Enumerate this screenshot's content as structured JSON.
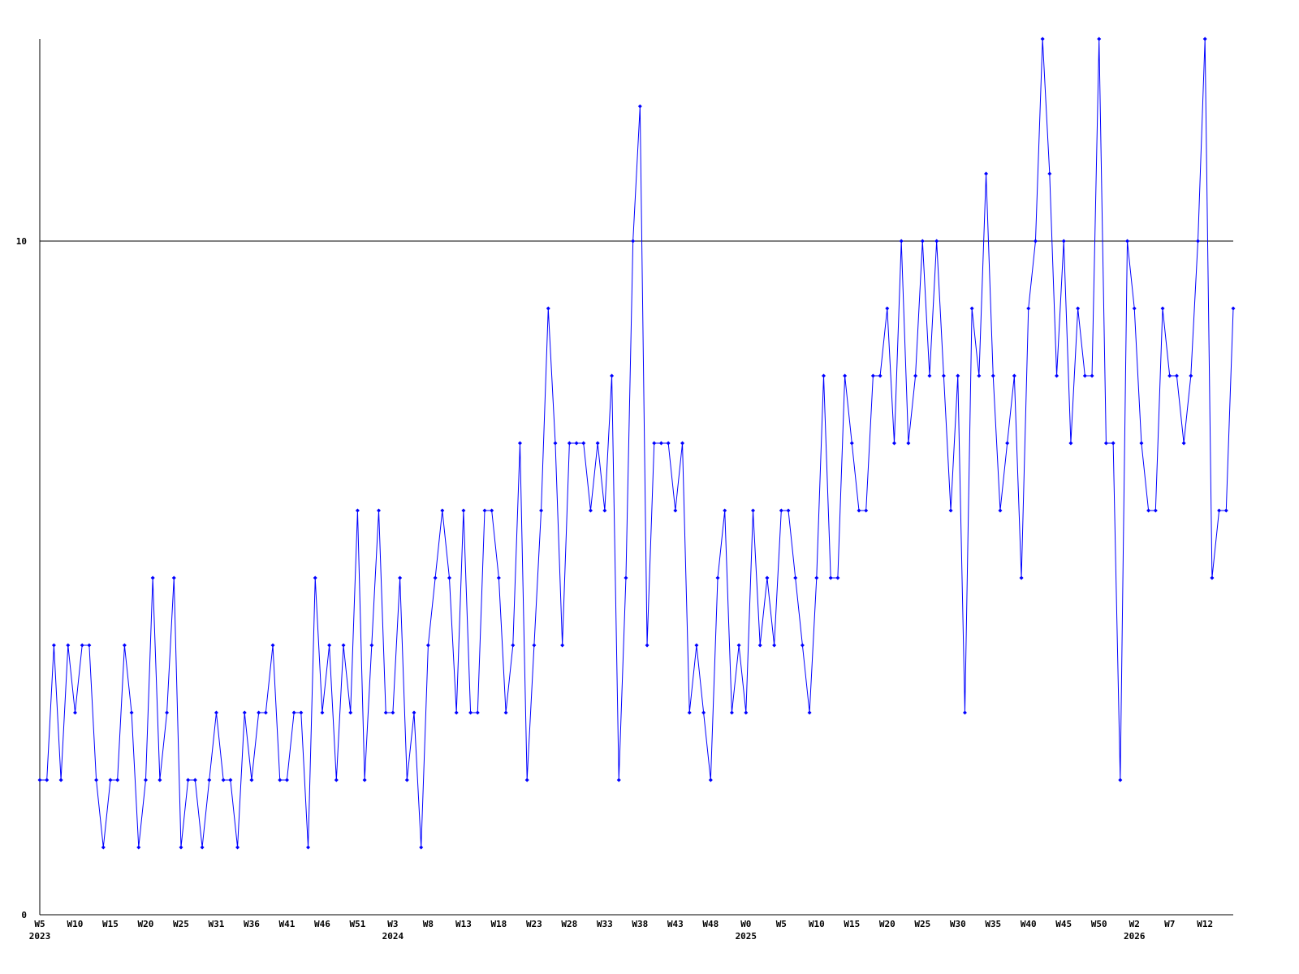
{
  "chart_data": {
    "type": "line",
    "color": "#0000ff",
    "axis_color": "#000000",
    "ylim": [
      0,
      13
    ],
    "yticks": [
      0,
      10
    ],
    "grid": true,
    "categories": [
      "W5",
      null,
      null,
      null,
      null,
      "W10",
      null,
      null,
      null,
      null,
      "W15",
      null,
      null,
      null,
      null,
      "W20",
      null,
      null,
      null,
      null,
      "W25",
      null,
      null,
      null,
      null,
      "W31",
      null,
      null,
      null,
      null,
      "W36",
      null,
      null,
      null,
      null,
      "W41",
      null,
      null,
      null,
      null,
      "W46",
      null,
      null,
      null,
      null,
      "W51",
      null,
      null,
      null,
      null,
      "W3",
      null,
      null,
      null,
      null,
      "W8",
      null,
      null,
      null,
      null,
      "W13",
      null,
      null,
      null,
      null,
      "W18",
      null,
      null,
      null,
      null,
      "W23",
      null,
      null,
      null,
      null,
      "W28",
      null,
      null,
      null,
      null,
      "W33",
      null,
      null,
      null,
      null,
      "W38",
      null,
      null,
      null,
      null,
      "W43",
      null,
      null,
      null,
      null,
      "W48",
      null,
      null,
      null,
      null,
      "W0",
      null,
      null,
      null,
      null,
      "W5",
      null,
      null,
      null,
      null,
      "W10",
      null,
      null,
      null,
      null,
      "W15",
      null,
      null,
      null,
      null,
      "W20",
      null,
      null,
      null,
      null,
      "W25",
      null,
      null,
      null,
      null,
      "W30",
      null,
      null,
      null,
      null,
      "W35",
      null,
      null,
      null,
      null,
      "W40",
      null,
      null,
      null,
      null,
      "W45",
      null,
      null,
      null,
      null,
      "W50",
      null,
      null,
      null,
      null,
      "W2",
      null,
      null,
      null,
      null,
      "W7",
      null,
      null,
      null,
      null,
      "W12",
      null,
      null,
      null,
      null
    ],
    "years": [
      "2023",
      null,
      null,
      null,
      null,
      null,
      null,
      null,
      null,
      null,
      null,
      null,
      null,
      null,
      null,
      null,
      null,
      null,
      null,
      null,
      null,
      null,
      null,
      null,
      null,
      null,
      null,
      null,
      null,
      null,
      null,
      null,
      null,
      null,
      null,
      null,
      null,
      null,
      null,
      null,
      null,
      null,
      null,
      null,
      null,
      null,
      null,
      null,
      null,
      null,
      "2024",
      null,
      null,
      null,
      null,
      null,
      null,
      null,
      null,
      null,
      null,
      null,
      null,
      null,
      null,
      null,
      null,
      null,
      null,
      null,
      null,
      null,
      null,
      null,
      null,
      null,
      null,
      null,
      null,
      null,
      null,
      null,
      null,
      null,
      null,
      null,
      null,
      null,
      null,
      null,
      null,
      null,
      null,
      null,
      null,
      null,
      null,
      null,
      null,
      null,
      "2025",
      null,
      null,
      null,
      null,
      null,
      null,
      null,
      null,
      null,
      null,
      null,
      null,
      null,
      null,
      null,
      null,
      null,
      null,
      null,
      null,
      null,
      null,
      null,
      null,
      null,
      null,
      null,
      null,
      null,
      null,
      null,
      null,
      null,
      null,
      null,
      null,
      null,
      null,
      null,
      null,
      null,
      null,
      null,
      null,
      null,
      null,
      null,
      null,
      null,
      null,
      null,
      null,
      null,
      null,
      "2026",
      null,
      null,
      null,
      null,
      null,
      null,
      null,
      null,
      null,
      null,
      null,
      null,
      null,
      null
    ],
    "values": [
      2,
      2,
      4,
      2,
      4,
      3,
      4,
      4,
      2,
      1,
      2,
      2,
      4,
      3,
      1,
      2,
      5,
      2,
      3,
      5,
      1,
      2,
      2,
      1,
      2,
      3,
      2,
      2,
      1,
      3,
      2,
      3,
      3,
      4,
      2,
      2,
      3,
      3,
      1,
      5,
      3,
      4,
      2,
      4,
      3,
      6,
      2,
      4,
      6,
      3,
      3,
      5,
      2,
      3,
      1,
      4,
      5,
      6,
      5,
      3,
      6,
      3,
      3,
      6,
      6,
      5,
      3,
      4,
      7,
      2,
      4,
      6,
      9,
      7,
      4,
      7,
      7,
      7,
      6,
      7,
      6,
      8,
      2,
      5,
      10,
      12,
      4,
      7,
      7,
      7,
      6,
      7,
      3,
      4,
      3,
      2,
      5,
      6,
      3,
      4,
      3,
      6,
      4,
      5,
      4,
      6,
      6,
      5,
      4,
      3,
      5,
      8,
      5,
      5,
      8,
      7,
      6,
      6,
      8,
      8,
      9,
      7,
      10,
      7,
      8,
      10,
      8,
      10,
      8,
      6,
      8,
      3,
      9,
      8,
      11,
      8,
      6,
      7,
      8,
      5,
      9,
      10,
      13,
      11,
      8,
      10,
      7,
      9,
      8,
      8,
      13,
      7,
      7,
      2,
      10,
      9,
      7,
      6,
      6,
      9,
      8,
      8,
      7,
      8,
      10,
      13,
      5,
      6,
      6,
      9
    ]
  }
}
